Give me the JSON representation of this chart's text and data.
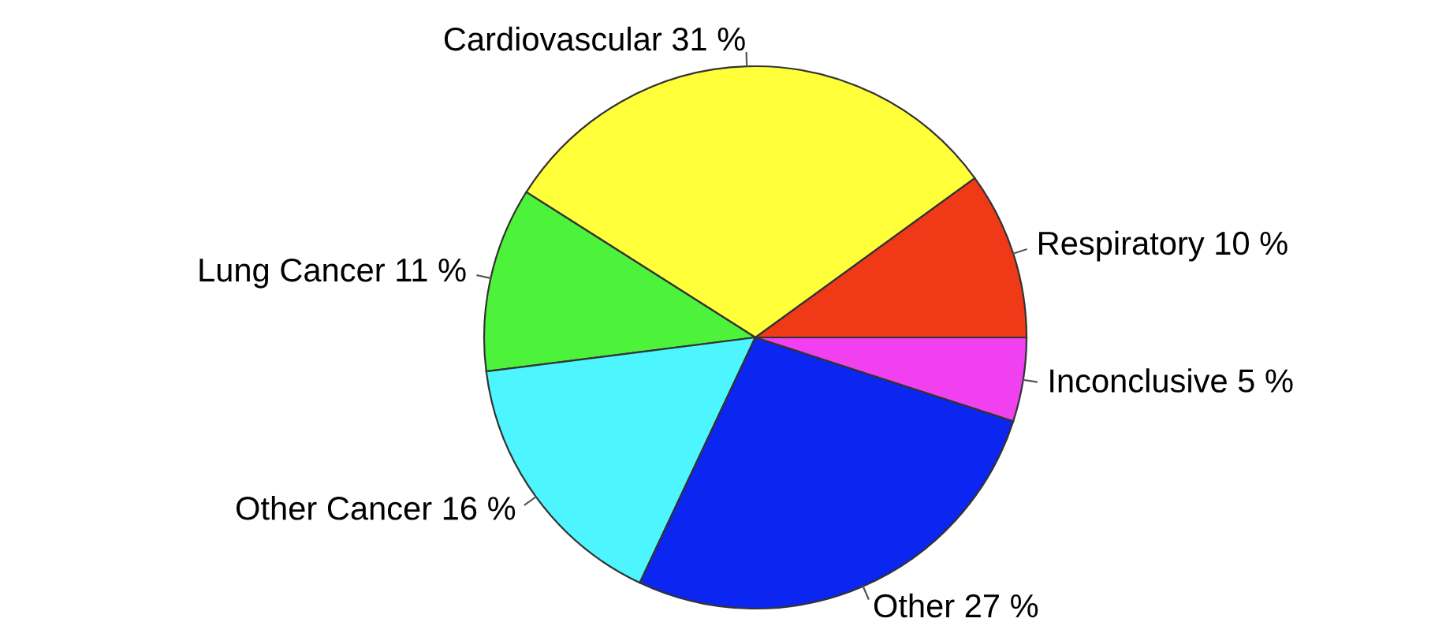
{
  "chart_data": {
    "type": "pie",
    "categories": [
      "Respiratory 10 %",
      "Cardiovascular 31 %",
      "Lung Cancer 11 %",
      "Other Cancer 16 %",
      "Other 27 %",
      "Inconclusive 5 %"
    ],
    "values": [
      10,
      31,
      11,
      16,
      27,
      5
    ],
    "colors": [
      "#f03a17",
      "#ffff3a",
      "#4df23a",
      "#4df5ff",
      "#0a26f0",
      "#f040f0"
    ],
    "legend": false
  }
}
